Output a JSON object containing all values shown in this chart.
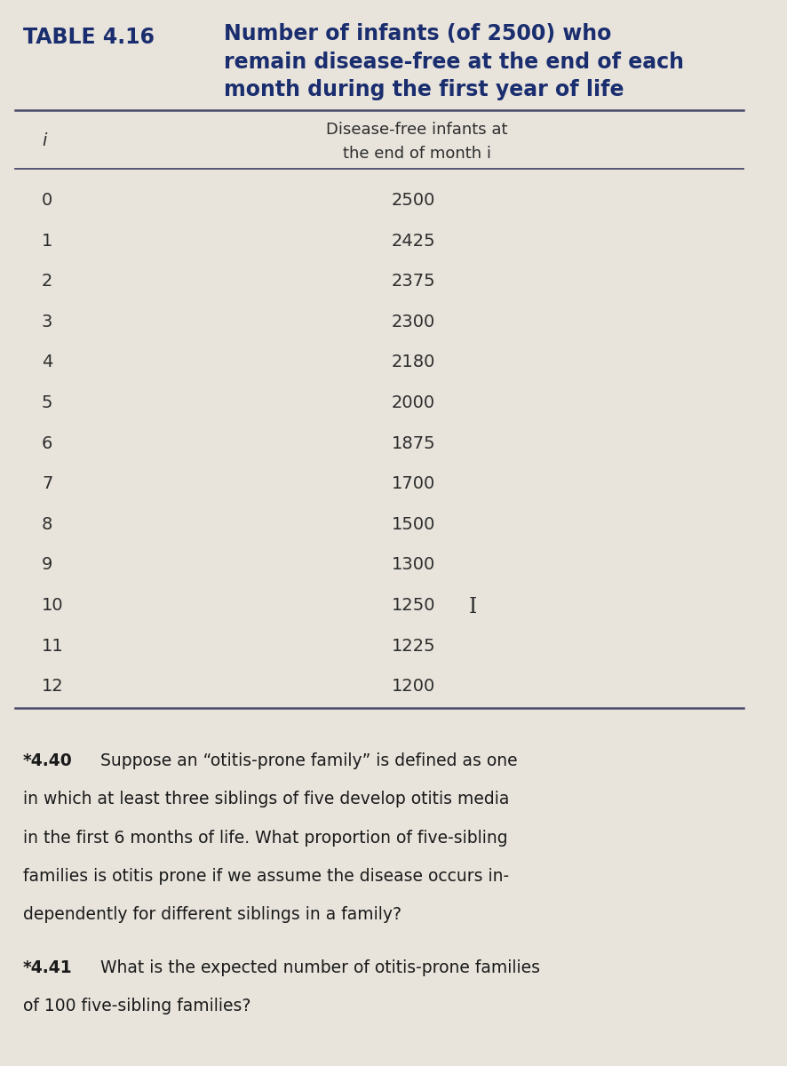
{
  "table_label": "TABLE 4.16",
  "title_line1": "Number of infants (of 2500) who",
  "title_line2": "remain disease-free at the end of each",
  "title_line3": "month during the first year of life",
  "col1_header": "i",
  "col2_header_line1": "Disease-free infants at",
  "col2_header_line2": "the end of month i",
  "months": [
    0,
    1,
    2,
    3,
    4,
    5,
    6,
    7,
    8,
    9,
    10,
    11,
    12
  ],
  "values": [
    2500,
    2425,
    2375,
    2300,
    2180,
    2000,
    1875,
    1700,
    1500,
    1300,
    1250,
    1225,
    1200
  ],
  "bg_color": "#e8e4dc",
  "title_color": "#1a2d6e",
  "table_text_color": "#2d2d2d",
  "problem_text_color": "#1a1a1a",
  "line_color": "#4a4a6a",
  "problem_440_lines": [
    "*4.40  Suppose an “otitis-prone family” is defined as one",
    "in which at least three siblings of five develop otitis media",
    "in the first 6 months of life. What proportion of five-sibling",
    "families is otitis prone if we assume the disease occurs in-",
    "dependently for different siblings in a family?"
  ],
  "problem_441_lines": [
    "*4.41  What is the expected number of otitis-prone families",
    "of 100 five-sibling families?"
  ]
}
